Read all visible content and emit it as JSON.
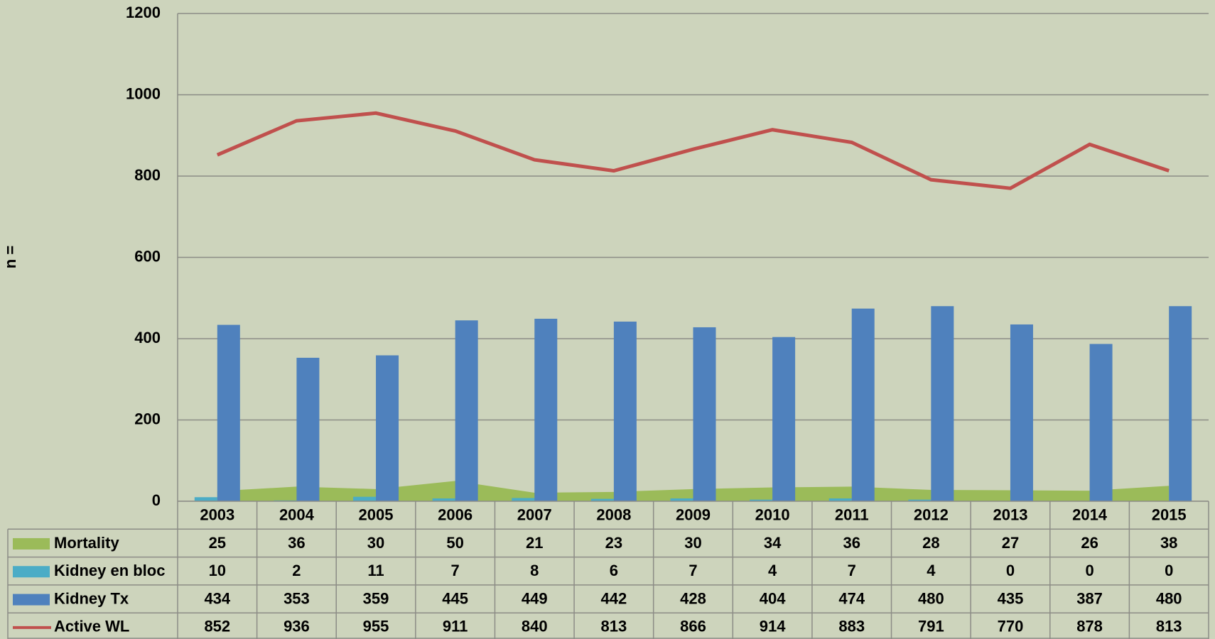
{
  "chart_data": {
    "type": "bar",
    "y_axis_label": "n =",
    "categories": [
      "2003",
      "2004",
      "2005",
      "2006",
      "2007",
      "2008",
      "2009",
      "2010",
      "2011",
      "2012",
      "2013",
      "2014",
      "2015"
    ],
    "series": [
      {
        "name": "Mortality",
        "type": "area",
        "color": "#9bbb59",
        "values": [
          25,
          36,
          30,
          50,
          21,
          23,
          30,
          34,
          36,
          28,
          27,
          26,
          38
        ]
      },
      {
        "name": "Kidney en bloc",
        "type": "bar",
        "color": "#4bacc6",
        "values": [
          10,
          2,
          11,
          7,
          8,
          6,
          7,
          4,
          7,
          4,
          0,
          0,
          0
        ]
      },
      {
        "name": "Kidney Tx",
        "type": "bar",
        "color": "#4f81bd",
        "values": [
          434,
          353,
          359,
          445,
          449,
          442,
          428,
          404,
          474,
          480,
          435,
          387,
          480
        ]
      },
      {
        "name": "Active WL",
        "type": "line",
        "color": "#c0504d",
        "values": [
          852,
          936,
          955,
          911,
          840,
          813,
          866,
          914,
          883,
          791,
          770,
          878,
          813
        ]
      }
    ],
    "ylim": [
      0,
      1200
    ],
    "yticks": [
      0,
      200,
      400,
      600,
      800,
      1000,
      1200
    ],
    "grid": true
  }
}
